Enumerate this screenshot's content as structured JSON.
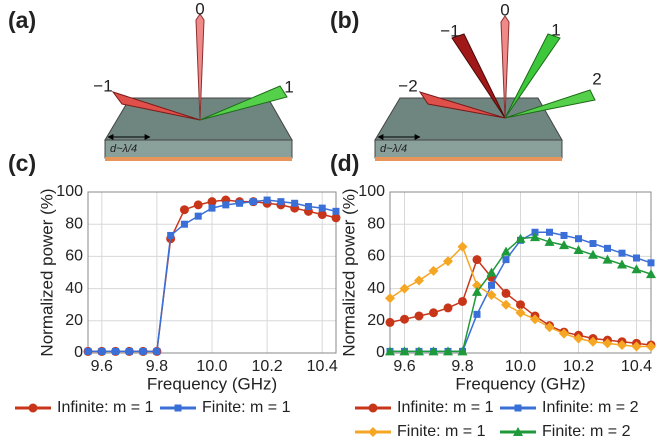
{
  "panels": {
    "a": {
      "label": "(a)",
      "orders": [
        "0",
        "−1",
        "1"
      ],
      "period": "d~λ/4"
    },
    "b": {
      "label": "(b)",
      "orders": [
        "0",
        "−1",
        "1",
        "−2",
        "2"
      ],
      "period": "d~λ/4"
    },
    "c": {
      "label": "(c)"
    },
    "d": {
      "label": "(d)"
    }
  },
  "chart_data": [
    {
      "type": "line",
      "xlabel": "Frequency (GHz)",
      "ylabel": "Normalized power (%)",
      "x": [
        9.55,
        9.6,
        9.65,
        9.7,
        9.75,
        9.8,
        9.85,
        9.9,
        9.95,
        10,
        10.05,
        10.1,
        10.15,
        10.2,
        10.25,
        10.3,
        10.35,
        10.4,
        10.45
      ],
      "xlim": [
        9.55,
        10.45
      ],
      "xticks": [
        9.6,
        9.8,
        {
          "value": 10,
          "label": "10.0"
        },
        10.2,
        10.4
      ],
      "ylim": [
        0,
        100
      ],
      "yticks": [
        0,
        20,
        40,
        60,
        80,
        100
      ],
      "grid": true,
      "series": [
        {
          "name": "Infinite: m = 1",
          "color": "#c8361a",
          "marker": "circle",
          "values": [
            1,
            1,
            1,
            1,
            1,
            1,
            71,
            89,
            92,
            94,
            95,
            94,
            94,
            93,
            92,
            90,
            88,
            86,
            84
          ]
        },
        {
          "name": "Finite: m = 1",
          "color": "#3a6fd8",
          "marker": "square",
          "values": [
            1,
            1,
            1,
            1,
            1,
            1,
            73,
            80,
            85,
            90,
            92,
            93,
            94,
            95,
            94,
            93,
            91,
            90,
            88
          ]
        }
      ]
    },
    {
      "type": "line",
      "xlabel": "Frequency (GHz)",
      "ylabel": "Normalized power (%)",
      "x": [
        9.55,
        9.6,
        9.65,
        9.7,
        9.75,
        9.8,
        9.85,
        9.9,
        9.95,
        10,
        10.05,
        10.1,
        10.15,
        10.2,
        10.25,
        10.3,
        10.35,
        10.4,
        10.45
      ],
      "xlim": [
        9.55,
        10.45
      ],
      "xticks": [
        9.6,
        9.8,
        {
          "value": 10,
          "label": "10.0"
        },
        10.2,
        10.4
      ],
      "ylim": [
        0,
        100
      ],
      "yticks": [
        0,
        20,
        40,
        60,
        80,
        100
      ],
      "grid": true,
      "series": [
        {
          "name": "Infinite: m = 1",
          "color": "#c8361a",
          "marker": "circle",
          "values": [
            19,
            21,
            23,
            25,
            28,
            32,
            58,
            47,
            37,
            30,
            23,
            17,
            13,
            11,
            9,
            8,
            7,
            6,
            5
          ]
        },
        {
          "name": "Infinite: m = 2",
          "color": "#3a6fd8",
          "marker": "square",
          "values": [
            1,
            1,
            1,
            1,
            1,
            1,
            24,
            42,
            58,
            70,
            75,
            75,
            73,
            71,
            68,
            65,
            62,
            59,
            56
          ]
        },
        {
          "name": "Finite: m = 1",
          "color": "#f5a623",
          "marker": "diamond",
          "values": [
            34,
            40,
            45,
            51,
            57,
            66,
            42,
            36,
            30,
            25,
            21,
            16,
            12,
            9,
            7,
            6,
            5,
            4,
            4
          ]
        },
        {
          "name": "Finite: m = 2",
          "color": "#1f9a3a",
          "marker": "triangle",
          "values": [
            1,
            1,
            1,
            1,
            1,
            1,
            38,
            50,
            63,
            71,
            72,
            69,
            67,
            64,
            61,
            58,
            55,
            52,
            49
          ]
        }
      ]
    }
  ]
}
